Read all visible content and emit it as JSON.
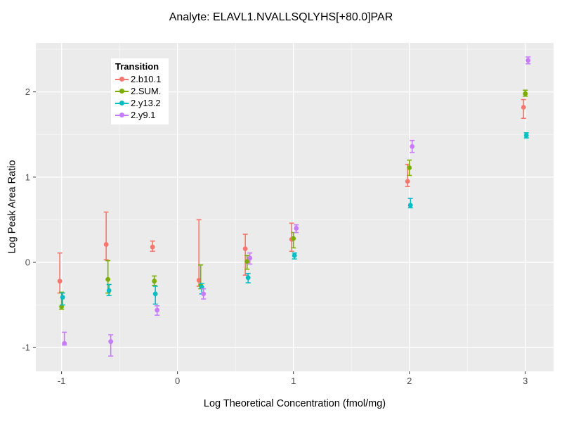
{
  "chart_data": {
    "type": "scatter",
    "subtype": "pointrange-with-errorbars",
    "title": "Analyte: ELAVL1.NVALLSQLYHS[+80.0]PAR",
    "xlabel": "Log Theoretical Concentration (fmol/mg)",
    "ylabel": "Log Peak Area Ratio",
    "xlim": [
      -1.222,
      3.244
    ],
    "ylim": [
      -1.279,
      2.575
    ],
    "x_ticks": [
      -1,
      0,
      1,
      2,
      3
    ],
    "y_ticks": [
      -1,
      0,
      1,
      2
    ],
    "x_minor_ticks": [
      -0.5,
      0.5,
      1.5,
      2.5
    ],
    "y_minor_ticks": [
      -0.5,
      0.5,
      1.5,
      2.5
    ],
    "grid": "white major and minor gridlines on gray panel",
    "panel_bg": "#EBEBEB",
    "tick_label_color": "#4D4D4D",
    "legend": {
      "title": "Transition",
      "position": "inside-top-left"
    },
    "series": [
      {
        "name": "2.b10.1",
        "color": "#F8766D",
        "points": [
          {
            "x": -1.0,
            "y": -0.22,
            "ymin": -0.36,
            "ymax": 0.11
          },
          {
            "x": -0.6,
            "y": 0.21,
            "ymin": 0.03,
            "ymax": 0.59
          },
          {
            "x": -0.2,
            "y": 0.18,
            "ymin": 0.13,
            "ymax": 0.25
          },
          {
            "x": 0.2,
            "y": -0.21,
            "ymin": -0.28,
            "ymax": 0.5
          },
          {
            "x": 0.6,
            "y": 0.16,
            "ymin": -0.15,
            "ymax": 0.33
          },
          {
            "x": 1.0,
            "y": 0.27,
            "ymin": 0.13,
            "ymax": 0.46
          },
          {
            "x": 2.0,
            "y": 0.95,
            "ymin": 0.89,
            "ymax": 1.15
          },
          {
            "x": 3.0,
            "y": 1.82,
            "ymin": 1.69,
            "ymax": 1.91
          }
        ]
      },
      {
        "name": "2.SUM.",
        "color": "#7CAE00",
        "points": [
          {
            "x": -1.0,
            "y": -0.52,
            "ymin": -0.55,
            "ymax": -0.35
          },
          {
            "x": -0.6,
            "y": -0.2,
            "ymin": -0.36,
            "ymax": 0.02
          },
          {
            "x": -0.2,
            "y": -0.22,
            "ymin": -0.27,
            "ymax": -0.16
          },
          {
            "x": 0.2,
            "y": -0.27,
            "ymin": -0.31,
            "ymax": -0.03
          },
          {
            "x": 0.6,
            "y": 0.01,
            "ymin": -0.08,
            "ymax": 0.08
          },
          {
            "x": 1.0,
            "y": 0.28,
            "ymin": 0.17,
            "ymax": 0.35
          },
          {
            "x": 2.0,
            "y": 1.11,
            "ymin": 1.02,
            "ymax": 1.2
          },
          {
            "x": 3.0,
            "y": 1.98,
            "ymin": 1.95,
            "ymax": 2.02
          }
        ]
      },
      {
        "name": "2.y13.2",
        "color": "#00BFC4",
        "points": [
          {
            "x": -1.0,
            "y": -0.41,
            "ymin": -0.5,
            "ymax": -0.36
          },
          {
            "x": -0.6,
            "y": -0.33,
            "ymin": -0.39,
            "ymax": -0.26
          },
          {
            "x": -0.2,
            "y": -0.37,
            "ymin": -0.49,
            "ymax": -0.28
          },
          {
            "x": 0.2,
            "y": -0.29,
            "ymin": -0.37,
            "ymax": -0.25
          },
          {
            "x": 0.6,
            "y": -0.18,
            "ymin": -0.24,
            "ymax": -0.13
          },
          {
            "x": 1.0,
            "y": 0.08,
            "ymin": 0.04,
            "ymax": 0.11
          },
          {
            "x": 2.0,
            "y": 0.67,
            "ymin": 0.64,
            "ymax": 0.75
          },
          {
            "x": 3.0,
            "y": 1.49,
            "ymin": 1.46,
            "ymax": 1.52
          }
        ]
      },
      {
        "name": "2.y9.1",
        "color": "#C77CFF",
        "points": [
          {
            "x": -1.0,
            "y": -0.95,
            "ymin": -0.97,
            "ymax": -0.82
          },
          {
            "x": -0.6,
            "y": -0.93,
            "ymin": -1.1,
            "ymax": -0.85
          },
          {
            "x": -0.2,
            "y": -0.56,
            "ymin": -0.62,
            "ymax": -0.51
          },
          {
            "x": 0.2,
            "y": -0.37,
            "ymin": -0.43,
            "ymax": -0.31
          },
          {
            "x": 0.6,
            "y": 0.05,
            "ymin": -0.02,
            "ymax": 0.11
          },
          {
            "x": 1.0,
            "y": 0.4,
            "ymin": 0.35,
            "ymax": 0.44
          },
          {
            "x": 2.0,
            "y": 1.36,
            "ymin": 1.29,
            "ymax": 1.43
          },
          {
            "x": 3.0,
            "y": 2.37,
            "ymin": 2.33,
            "ymax": 2.41
          }
        ]
      }
    ]
  }
}
